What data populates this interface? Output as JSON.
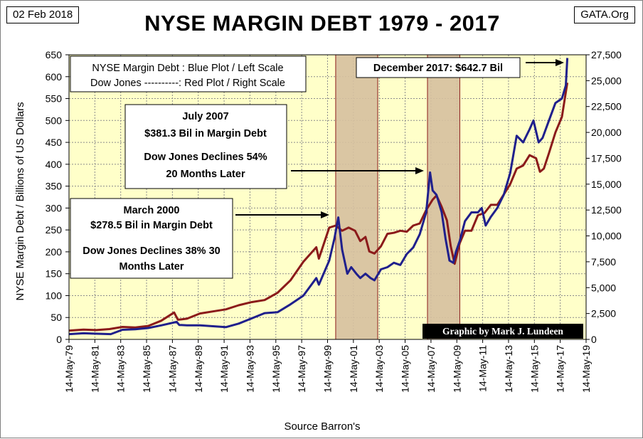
{
  "header": {
    "date": "02 Feb 2018",
    "site": "GATA.Org",
    "title": "NYSE MARGIN DEBT 1979 - 2017"
  },
  "colors": {
    "plot_bg": "#ffffc9",
    "margin_debt": "#1f1f8c",
    "dow_jones": "#8b1a1a",
    "recession_fill": "#d6c09f",
    "recession_edge": "#8b1a1a"
  },
  "chart_data": {
    "type": "line",
    "title": "NYSE MARGIN DEBT 1979 - 2017",
    "xlabel": "Source Barron's",
    "ylabel": "NYSE Margin Debt  /  Billions of  US  Dollars",
    "ylim": [
      0,
      650
    ],
    "y_ticks": [
      "0",
      "50",
      "100",
      "150",
      "200",
      "250",
      "300",
      "350",
      "400",
      "450",
      "500",
      "550",
      "600",
      "650"
    ],
    "y2lim": [
      0,
      27500
    ],
    "y2_ticks": [
      "0",
      "2,500",
      "5,000",
      "7,500",
      "10,000",
      "12,500",
      "15,000",
      "17,500",
      "20,000",
      "22,500",
      "25,000",
      "27,500"
    ],
    "xlim": [
      1979.37,
      2019.37
    ],
    "x_ticks": [
      "14-May-79",
      "14-May-81",
      "14-May-83",
      "14-May-85",
      "14-May-87",
      "14-May-89",
      "14-May-91",
      "14-May-93",
      "14-May-95",
      "14-May-97",
      "14-May-99",
      "14-May-01",
      "14-May-03",
      "14-May-05",
      "14-May-07",
      "14-May-09",
      "14-May-11",
      "14-May-13",
      "14-May-15",
      "14-May-17",
      "14-May-19"
    ],
    "shaded_periods": [
      [
        2000.0,
        2003.25
      ],
      [
        2007.1,
        2009.6
      ]
    ],
    "series": [
      {
        "name": "NYSE Margin Debt",
        "axis": "left",
        "x": [
          1979.4,
          1980.5,
          1981.5,
          1982.6,
          1983.5,
          1984.5,
          1985.5,
          1986.5,
          1987.7,
          1987.9,
          1988.5,
          1989.5,
          1990.5,
          1991.5,
          1992.5,
          1993.5,
          1994.5,
          1995.5,
          1996.5,
          1997.5,
          1998.5,
          1998.7,
          1999.5,
          1999.9,
          2000.2,
          2000.5,
          2000.9,
          2001.2,
          2001.6,
          2001.9,
          2002.3,
          2002.7,
          2003.0,
          2003.5,
          2004.0,
          2004.5,
          2005.0,
          2005.5,
          2006.0,
          2006.5,
          2007.0,
          2007.3,
          2007.5,
          2007.8,
          2008.2,
          2008.5,
          2008.8,
          2009.1,
          2009.3,
          2009.6,
          2010.0,
          2010.5,
          2011.0,
          2011.3,
          2011.6,
          2012.0,
          2012.5,
          2013.0,
          2013.5,
          2014.0,
          2014.5,
          2015.0,
          2015.3,
          2015.7,
          2016.0,
          2016.5,
          2017.0,
          2017.5,
          2017.8,
          2017.92
        ],
        "values": [
          12,
          14,
          13,
          12,
          22,
          23,
          26,
          32,
          40,
          33,
          32,
          32,
          30,
          28,
          36,
          48,
          60,
          62,
          80,
          100,
          140,
          125,
          180,
          230,
          278.5,
          205,
          150,
          165,
          150,
          140,
          150,
          140,
          135,
          160,
          165,
          175,
          170,
          195,
          210,
          240,
          290,
          381.3,
          340,
          330,
          290,
          230,
          180,
          175,
          200,
          225,
          270,
          290,
          290,
          300,
          260,
          280,
          300,
          330,
          380,
          465,
          450,
          480,
          500,
          450,
          460,
          500,
          540,
          550,
          580,
          642.7
        ]
      },
      {
        "name": "Dow Jones",
        "axis": "right",
        "x": [
          1979.4,
          1980.5,
          1981.5,
          1982.5,
          1983.5,
          1984.5,
          1985.5,
          1986.5,
          1987.5,
          1987.8,
          1988.5,
          1989.5,
          1990.5,
          1991.5,
          1992.5,
          1993.5,
          1994.5,
          1995.5,
          1996.5,
          1997.5,
          1998.5,
          1998.7,
          1999.5,
          2000.0,
          2000.5,
          2001.0,
          2001.5,
          2001.9,
          2002.3,
          2002.6,
          2003.0,
          2003.5,
          2004.0,
          2004.5,
          2005.0,
          2005.5,
          2006.0,
          2006.5,
          2007.0,
          2007.5,
          2007.8,
          2008.2,
          2008.6,
          2008.9,
          2009.2,
          2009.6,
          2010.0,
          2010.5,
          2011.0,
          2011.5,
          2012.0,
          2012.5,
          2013.0,
          2013.5,
          2014.0,
          2014.5,
          2015.0,
          2015.5,
          2015.8,
          2016.1,
          2016.5,
          2017.0,
          2017.5,
          2017.92
        ],
        "values": [
          850,
          950,
          900,
          1000,
          1200,
          1150,
          1300,
          1800,
          2600,
          1900,
          2000,
          2500,
          2700,
          2900,
          3300,
          3600,
          3800,
          4500,
          5700,
          7500,
          8900,
          7800,
          10800,
          11000,
          10500,
          10800,
          10500,
          9500,
          9900,
          8500,
          8300,
          9000,
          10200,
          10300,
          10500,
          10400,
          11000,
          11200,
          12500,
          13500,
          13900,
          12800,
          11500,
          9000,
          7300,
          9300,
          10500,
          10500,
          12000,
          12200,
          13000,
          13000,
          14000,
          15000,
          16500,
          16800,
          17800,
          17500,
          16200,
          16500,
          18000,
          20000,
          21500,
          24800
        ]
      }
    ]
  },
  "legend": {
    "line1": "NYSE Margin Debt : Blue Plot / Left Scale",
    "line2": "Dow Jones ----------: Red Plot / Right Scale"
  },
  "annotations": {
    "peak_2017": "December 2017: $642.7 Bil",
    "jul2007_line1": "July 2007",
    "jul2007_line2": "$381.3 Bil in Margin Debt",
    "jul2007_line3": "Dow Jones Declines 54%",
    "jul2007_line4": "20 Months Later",
    "mar2000_line1": "March 2000",
    "mar2000_line2": "$278.5 Bil in Margin Debt",
    "mar2000_line3": "Dow Jones Declines 38% 30",
    "mar2000_line4": "Months Later"
  },
  "credit": "Graphic by Mark J. Lundeen"
}
